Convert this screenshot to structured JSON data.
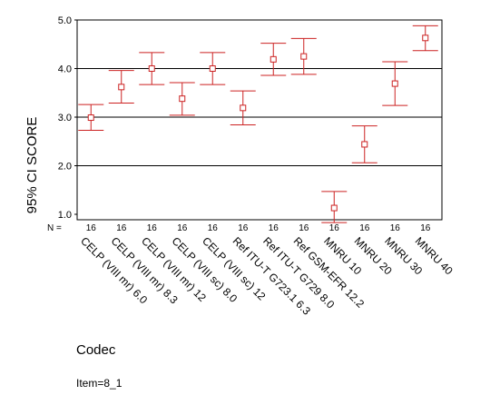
{
  "chart_data": {
    "type": "errorbar",
    "ylabel": "95% CI SCORE",
    "xlabel": "Codec",
    "footnote": "Item=8_1",
    "n_label": "N =",
    "ylim": [
      1.0,
      5.0
    ],
    "yticks": [
      "1.0",
      "2.0",
      "3.0",
      "4.0",
      "5.0"
    ],
    "ytick_values": [
      1.0,
      2.0,
      3.0,
      4.0,
      5.0
    ],
    "gridlines_y": [
      2.0,
      3.0,
      4.0
    ],
    "colors": {
      "marker": "#cc2222",
      "axis": "#000000"
    },
    "categories": [
      "CELP (VIII mr) 6.0",
      "CELP (VIII mr) 8.3",
      "CELP (VIII mr) 12",
      "CELP (VIII sc) 8.0",
      "CELP (VIII sc) 12",
      "Ref ITU-T G723.1 6.3",
      "Ref ITU-T G729 8.0",
      "Ref GSM-EFR 12.2",
      "MNRU 10",
      "MNRU 20",
      "MNRU 30",
      "MNRU 40"
    ],
    "n": [
      "16",
      "16",
      "16",
      "16",
      "16",
      "16",
      "16",
      "16",
      "16",
      "16",
      "16",
      "16"
    ],
    "mean": [
      2.99,
      3.62,
      4.0,
      3.38,
      4.0,
      3.19,
      4.19,
      4.25,
      1.13,
      2.44,
      3.69,
      4.63
    ],
    "lower": [
      2.73,
      3.29,
      3.67,
      3.04,
      3.67,
      2.84,
      3.86,
      3.88,
      0.83,
      2.06,
      3.24,
      4.37
    ],
    "upper": [
      3.26,
      3.96,
      4.33,
      3.71,
      4.33,
      3.54,
      4.52,
      4.62,
      1.47,
      2.82,
      4.14,
      4.88
    ]
  }
}
